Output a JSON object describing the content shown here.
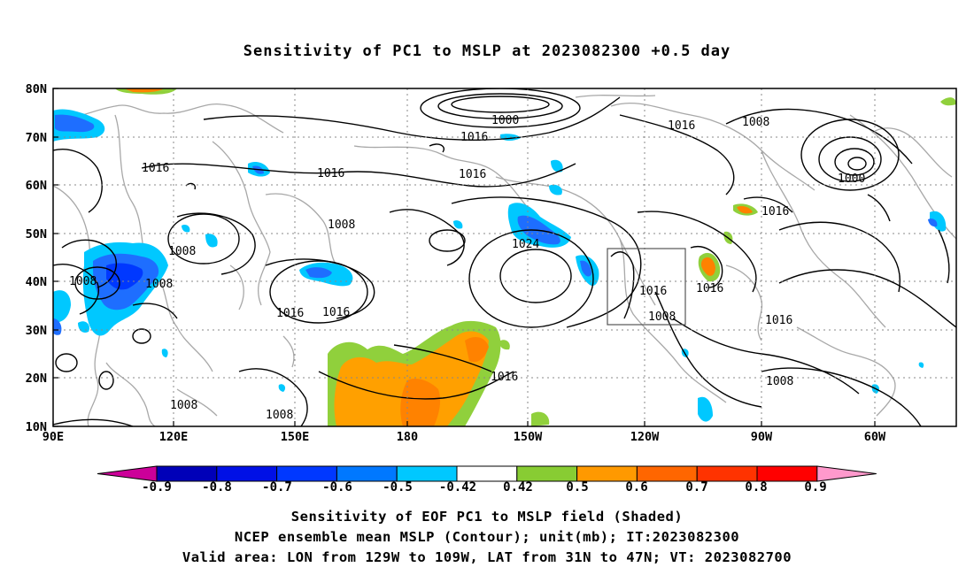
{
  "title": "Sensitivity of PC1 to MSLP at 2023082300 +0.5 day",
  "map": {
    "lat_labels": [
      "80N",
      "70N",
      "60N",
      "50N",
      "40N",
      "30N",
      "20N",
      "10N"
    ],
    "lon_labels": [
      "90E",
      "120E",
      "150E",
      "180",
      "150W",
      "120W",
      "90W",
      "60W"
    ],
    "contour_labels": [
      {
        "text": "1000"
      },
      {
        "text": "1016"
      },
      {
        "text": "1016"
      },
      {
        "text": "1008"
      },
      {
        "text": "1016"
      },
      {
        "text": "1000"
      },
      {
        "text": "1016"
      },
      {
        "text": "1016"
      },
      {
        "text": "1016"
      },
      {
        "text": "1008"
      },
      {
        "text": "1008"
      },
      {
        "text": "1024"
      },
      {
        "text": "1016"
      },
      {
        "text": "1008"
      },
      {
        "text": "1008"
      },
      {
        "text": "1016"
      },
      {
        "text": "1016"
      },
      {
        "text": "1016"
      },
      {
        "text": "1008"
      },
      {
        "text": "1016"
      },
      {
        "text": "1016"
      },
      {
        "text": "1008"
      },
      {
        "text": "1008"
      },
      {
        "text": "1008"
      }
    ],
    "shading_colors": {
      "dark_orange": "#ff8200",
      "orange": "#ffa000",
      "green": "#90d03c",
      "cyan": "#00c8ff",
      "blue": "#1e6eff"
    }
  },
  "colorbar": {
    "labels": [
      "-0.9",
      "-0.8",
      "-0.7",
      "-0.6",
      "-0.5",
      "-0.42",
      "0.42",
      "0.5",
      "0.6",
      "0.7",
      "0.8",
      "0.9"
    ],
    "colors": [
      "#cc0099",
      "#0000b8",
      "#0010e6",
      "#0038ff",
      "#0078ff",
      "#00c8ff",
      "#ffffff",
      "#88cc33",
      "#ff9900",
      "#ff6600",
      "#ff3300",
      "#ff0000",
      "#ff99cc"
    ]
  },
  "captions": [
    "Sensitivity of EOF PC1 to MSLP field (Shaded)",
    "NCEP ensemble mean MSLP (Contour); unit(mb); IT:2023082300",
    "Valid area: LON from 129W to 109W, LAT from 31N to 47N; VT: 2023082700"
  ]
}
